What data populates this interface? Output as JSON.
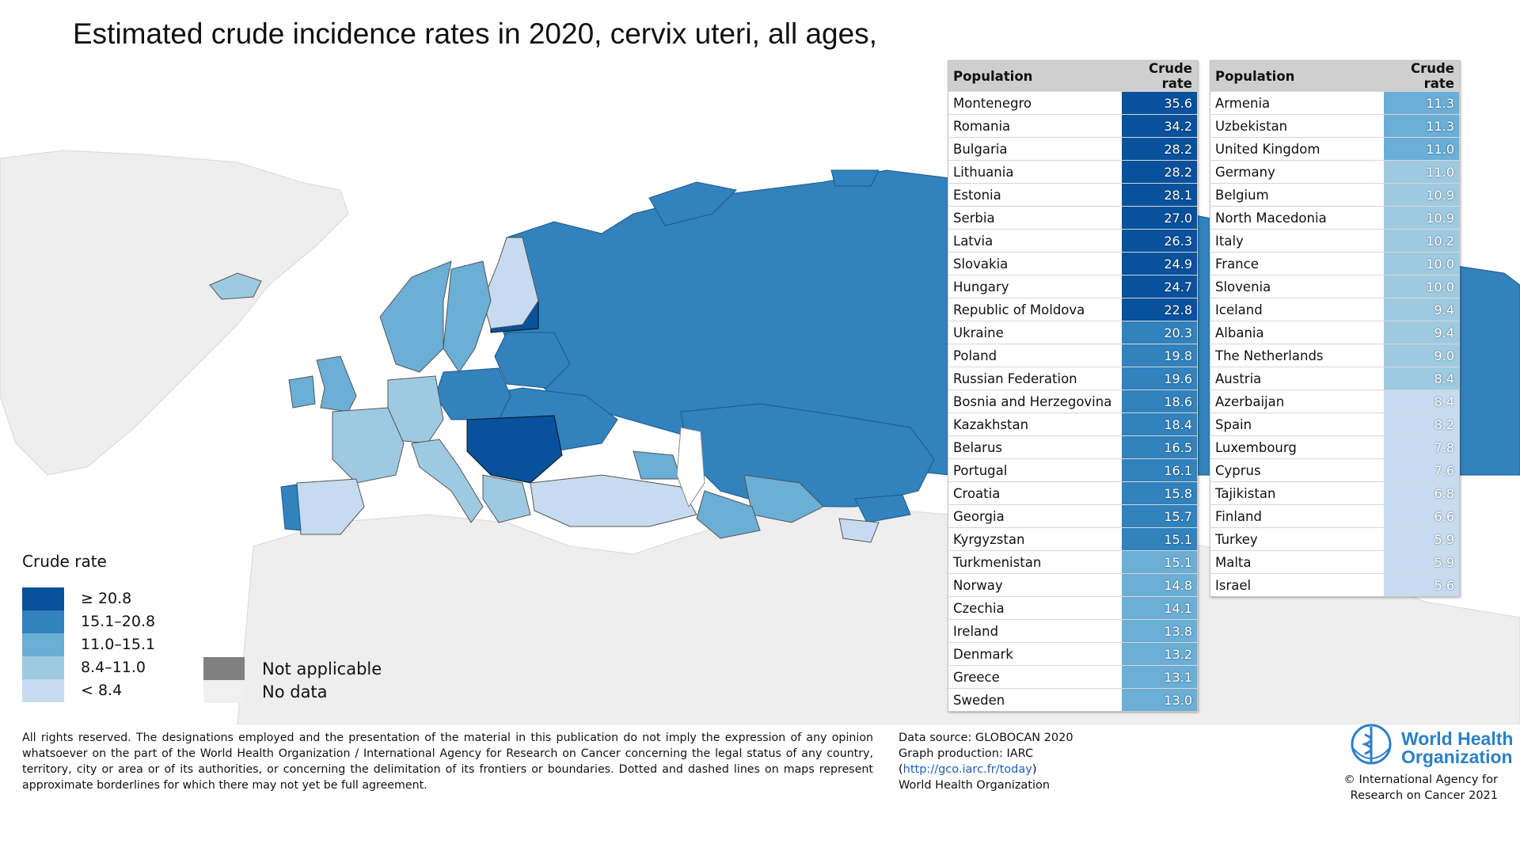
{
  "title": "Estimated crude incidence rates in 2020, cervix uteri, all ages,",
  "colors": {
    "class_1": "#08519c",
    "class_2": "#3182bd",
    "class_3": "#6baed6",
    "class_4": "#9ecae1",
    "class_5": "#c6dbef",
    "not_applicable": "#808080",
    "no_data": "#f0f0f0",
    "sea": "#ffffff",
    "other_land": "#eeeeee"
  },
  "legend": {
    "title": "Crude rate",
    "classes": [
      {
        "label": "≥ 20.8",
        "color": "#08519c"
      },
      {
        "label": "15.1–20.8",
        "color": "#3182bd"
      },
      {
        "label": "11.0–15.1",
        "color": "#6baed6"
      },
      {
        "label": "8.4–11.0",
        "color": "#9ecae1"
      },
      {
        "label": "< 8.4",
        "color": "#c6dbef"
      }
    ],
    "not_applicable": "Not applicable",
    "no_data": "No data"
  },
  "table_headers": {
    "population": "Population",
    "rate": "Crude rate"
  },
  "table_left": [
    {
      "country": "Montenegro",
      "rate": "35.6",
      "cls": 1
    },
    {
      "country": "Romania",
      "rate": "34.2",
      "cls": 1
    },
    {
      "country": "Bulgaria",
      "rate": "28.2",
      "cls": 1
    },
    {
      "country": "Lithuania",
      "rate": "28.2",
      "cls": 1
    },
    {
      "country": "Estonia",
      "rate": "28.1",
      "cls": 1
    },
    {
      "country": "Serbia",
      "rate": "27.0",
      "cls": 1
    },
    {
      "country": "Latvia",
      "rate": "26.3",
      "cls": 1
    },
    {
      "country": "Slovakia",
      "rate": "24.9",
      "cls": 1
    },
    {
      "country": "Hungary",
      "rate": "24.7",
      "cls": 1
    },
    {
      "country": "Republic of Moldova",
      "rate": "22.8",
      "cls": 1
    },
    {
      "country": "Ukraine",
      "rate": "20.3",
      "cls": 2
    },
    {
      "country": "Poland",
      "rate": "19.8",
      "cls": 2
    },
    {
      "country": "Russian Federation",
      "rate": "19.6",
      "cls": 2
    },
    {
      "country": "Bosnia and Herzegovina",
      "rate": "18.6",
      "cls": 2
    },
    {
      "country": "Kazakhstan",
      "rate": "18.4",
      "cls": 2
    },
    {
      "country": "Belarus",
      "rate": "16.5",
      "cls": 2
    },
    {
      "country": "Portugal",
      "rate": "16.1",
      "cls": 2
    },
    {
      "country": "Croatia",
      "rate": "15.8",
      "cls": 2
    },
    {
      "country": "Georgia",
      "rate": "15.7",
      "cls": 2
    },
    {
      "country": "Kyrgyzstan",
      "rate": "15.1",
      "cls": 2
    },
    {
      "country": "Turkmenistan",
      "rate": "15.1",
      "cls": 3
    },
    {
      "country": "Norway",
      "rate": "14.8",
      "cls": 3
    },
    {
      "country": "Czechia",
      "rate": "14.1",
      "cls": 3
    },
    {
      "country": "Ireland",
      "rate": "13.8",
      "cls": 3
    },
    {
      "country": "Denmark",
      "rate": "13.2",
      "cls": 3
    },
    {
      "country": "Greece",
      "rate": "13.1",
      "cls": 3
    },
    {
      "country": "Sweden",
      "rate": "13.0",
      "cls": 3
    }
  ],
  "table_right": [
    {
      "country": "Armenia",
      "rate": "11.3",
      "cls": 3
    },
    {
      "country": "Uzbekistan",
      "rate": "11.3",
      "cls": 3
    },
    {
      "country": "United Kingdom",
      "rate": "11.0",
      "cls": 3
    },
    {
      "country": "Germany",
      "rate": "11.0",
      "cls": 4
    },
    {
      "country": "Belgium",
      "rate": "10.9",
      "cls": 4
    },
    {
      "country": "North Macedonia",
      "rate": "10.9",
      "cls": 4
    },
    {
      "country": "Italy",
      "rate": "10.2",
      "cls": 4
    },
    {
      "country": "France",
      "rate": "10.0",
      "cls": 4
    },
    {
      "country": "Slovenia",
      "rate": "10.0",
      "cls": 4
    },
    {
      "country": "Iceland",
      "rate": "9.4",
      "cls": 4
    },
    {
      "country": "Albania",
      "rate": "9.4",
      "cls": 4
    },
    {
      "country": "The Netherlands",
      "rate": "9.0",
      "cls": 4
    },
    {
      "country": "Austria",
      "rate": "8.4",
      "cls": 4
    },
    {
      "country": "Azerbaijan",
      "rate": "8.4",
      "cls": 5
    },
    {
      "country": "Spain",
      "rate": "8.2",
      "cls": 5
    },
    {
      "country": "Luxembourg",
      "rate": "7.8",
      "cls": 5
    },
    {
      "country": "Cyprus",
      "rate": "7.6",
      "cls": 5
    },
    {
      "country": "Tajikistan",
      "rate": "6.8",
      "cls": 5
    },
    {
      "country": "Finland",
      "rate": "6.6",
      "cls": 5
    },
    {
      "country": "Turkey",
      "rate": "5.9",
      "cls": 5
    },
    {
      "country": "Malta",
      "rate": "5.9",
      "cls": 5
    },
    {
      "country": "Israel",
      "rate": "5.6",
      "cls": 5
    }
  ],
  "disclaimer": "All rights reserved. The designations employed and the presentation of the material in this publication do not imply the expression of any opinion whatsoever on the part of the World Health Organization / International Agency for Research on Cancer concerning the legal status of any country, territory, city or area or of its authorities, or concerning the delimitation of its frontiers or boundaries. Dotted and dashed lines on maps represent approximate borderlines for which there may not yet be full agreement.",
  "source": {
    "line1": "Data source: GLOBOCAN 2020",
    "line2": "Graph production: IARC",
    "link_open": "(",
    "link": "http://gco.iarc.fr/today",
    "link_close": ")",
    "line4": "World Health Organization"
  },
  "who": {
    "line1": "World Health",
    "line2": "Organization"
  },
  "copyright": {
    "line1": "© International Agency for",
    "line2": "Research on Cancer 2021"
  }
}
